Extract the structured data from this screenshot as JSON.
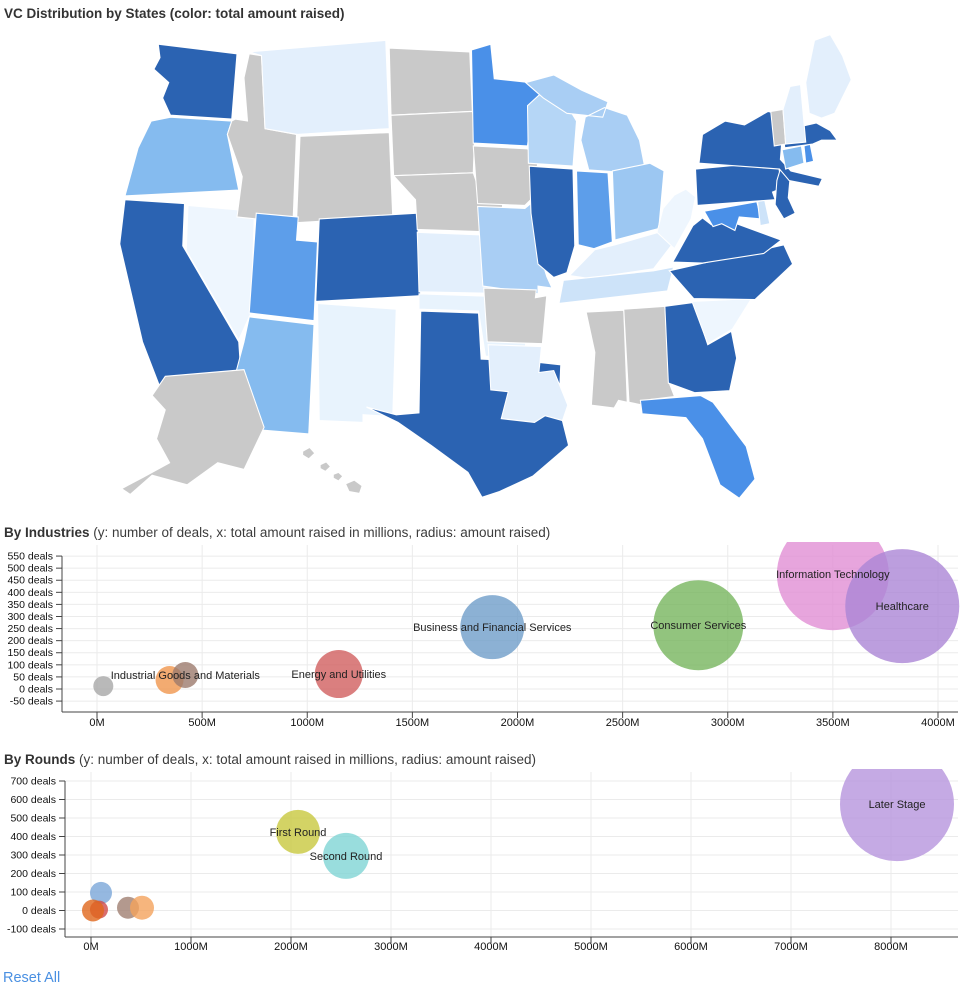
{
  "map": {
    "title": "VC Distribution by States (color: total amount raised)",
    "color_scale": {
      "high": "#2b63b2",
      "bright": "#4a90e8",
      "medium": "#5d9eea",
      "light_medium": "#85bbef",
      "light": "#a9cef4",
      "pale": "#cde3f9",
      "very_pale": "#e3effc",
      "palest": "#eef6fe",
      "no_data": "#c9c9c9"
    },
    "states": [
      {
        "id": "WA",
        "color": "#2b63b2"
      },
      {
        "id": "OR",
        "color": "#85bbef"
      },
      {
        "id": "CA",
        "color": "#2b63b2"
      },
      {
        "id": "NV",
        "color": "#eef6fe"
      },
      {
        "id": "ID",
        "color": "#c9c9c9"
      },
      {
        "id": "MT",
        "color": "#e3effc"
      },
      {
        "id": "WY",
        "color": "#c9c9c9"
      },
      {
        "id": "UT",
        "color": "#5d9eea"
      },
      {
        "id": "AZ",
        "color": "#85bbef"
      },
      {
        "id": "CO",
        "color": "#2b63b2"
      },
      {
        "id": "NM",
        "color": "#e8f3fd"
      },
      {
        "id": "ND",
        "color": "#c9c9c9"
      },
      {
        "id": "SD",
        "color": "#c9c9c9"
      },
      {
        "id": "NE",
        "color": "#c9c9c9"
      },
      {
        "id": "KS",
        "color": "#e3effc"
      },
      {
        "id": "OK",
        "color": "#e8f3fd"
      },
      {
        "id": "TX",
        "color": "#2b63b2"
      },
      {
        "id": "MN",
        "color": "#4a90e8"
      },
      {
        "id": "IA",
        "color": "#c9c9c9"
      },
      {
        "id": "MO",
        "color": "#a9cef4"
      },
      {
        "id": "AR",
        "color": "#c9c9c9"
      },
      {
        "id": "LA",
        "color": "#e3effc"
      },
      {
        "id": "WI",
        "color": "#b5d6f6"
      },
      {
        "id": "IL",
        "color": "#2b63b2"
      },
      {
        "id": "MI",
        "color": "#a9cef4"
      },
      {
        "id": "IN",
        "color": "#5d9eea"
      },
      {
        "id": "OH",
        "color": "#9cc7f2"
      },
      {
        "id": "KY",
        "color": "#e3effc"
      },
      {
        "id": "TN",
        "color": "#cde3f9"
      },
      {
        "id": "MS",
        "color": "#c9c9c9"
      },
      {
        "id": "AL",
        "color": "#c9c9c9"
      },
      {
        "id": "GA",
        "color": "#2b63b2"
      },
      {
        "id": "FL",
        "color": "#4a90e8"
      },
      {
        "id": "SC",
        "color": "#eef6fe"
      },
      {
        "id": "NC",
        "color": "#2b63b2"
      },
      {
        "id": "VA",
        "color": "#2b63b2"
      },
      {
        "id": "WV",
        "color": "#eef6fe"
      },
      {
        "id": "MD",
        "color": "#4a90e8"
      },
      {
        "id": "DE",
        "color": "#cde3f9"
      },
      {
        "id": "PA",
        "color": "#2b63b2"
      },
      {
        "id": "NJ",
        "color": "#2b63b2"
      },
      {
        "id": "NY",
        "color": "#2b63b2"
      },
      {
        "id": "CT",
        "color": "#85bbef"
      },
      {
        "id": "RI",
        "color": "#4a90e8"
      },
      {
        "id": "MA",
        "color": "#2b63b2"
      },
      {
        "id": "VT",
        "color": "#c9c9c9"
      },
      {
        "id": "NH",
        "color": "#e3effc"
      },
      {
        "id": "ME",
        "color": "#e3effc"
      },
      {
        "id": "AK",
        "color": "#c9c9c9"
      },
      {
        "id": "HI",
        "color": "#c9c9c9"
      }
    ]
  },
  "industries": {
    "title_bold": "By Industries",
    "title_note": " (y: number of deals, x: total amount raised in millions, radius: amount raised)"
  },
  "rounds": {
    "title_bold": "By Rounds",
    "title_note": " (y: number of deals, x: total amount raised in millions, radius: amount raised)"
  },
  "reset_label": "Reset All",
  "chart_data": [
    {
      "type": "bubble",
      "name": "industries",
      "title": "By Industries",
      "subtitle": "y: number of deals, x: total amount raised in millions, radius: amount raised",
      "ylabel": "number of deals",
      "xlabel": "total amount raised (millions)",
      "x_tick_labels": [
        "0M",
        "500M",
        "1000M",
        "1500M",
        "2000M",
        "2500M",
        "3000M",
        "3500M",
        "4000M"
      ],
      "y_tick_labels": [
        "550 deals",
        "500 deals",
        "450 deals",
        "400 deals",
        "350 deals",
        "300 deals",
        "250 deals",
        "200 deals",
        "150 deals",
        "100 deals",
        "50 deals",
        "0 deals",
        "-50 deals"
      ],
      "x_range": [
        0,
        4100
      ],
      "y_range": [
        -95,
        600
      ],
      "grid": true,
      "points": [
        {
          "label": "",
          "x": 30,
          "y": 12,
          "r": 10,
          "color": "#a8a8a8"
        },
        {
          "label": "",
          "x": 345,
          "y": 37,
          "r": 14,
          "color": "#f0964e"
        },
        {
          "label": "Industrial Goods and Materials",
          "x": 420,
          "y": 58,
          "r": 13,
          "color": "#9c7a6d"
        },
        {
          "label": "Energy and Utilities",
          "x": 1150,
          "y": 62,
          "r": 24,
          "color": "#d15f5f"
        },
        {
          "label": "Business and Financial Services",
          "x": 1880,
          "y": 256,
          "r": 32,
          "color": "#6f9ec9"
        },
        {
          "label": "Consumer Services",
          "x": 2860,
          "y": 264,
          "r": 45,
          "color": "#77b55e"
        },
        {
          "label": "Information Technology",
          "x": 3500,
          "y": 475,
          "r": 56,
          "color": "#e18fd4"
        },
        {
          "label": "Healthcare",
          "x": 3830,
          "y": 343,
          "r": 57,
          "color": "#ab86d6"
        }
      ]
    },
    {
      "type": "bubble",
      "name": "rounds",
      "title": "By Rounds",
      "subtitle": "y: number of deals, x: total amount raised in millions, radius: amount raised",
      "ylabel": "number of deals",
      "xlabel": "total amount raised (millions)",
      "x_tick_labels": [
        "0M",
        "1000M",
        "2000M",
        "3000M",
        "4000M",
        "5000M",
        "6000M",
        "7000M",
        "8000M"
      ],
      "y_tick_labels": [
        "700 deals",
        "600 deals",
        "500 deals",
        "400 deals",
        "300 deals",
        "200 deals",
        "100 deals",
        "0 deals",
        "-100 deals"
      ],
      "x_range": [
        0,
        8700
      ],
      "y_range": [
        -145,
        765
      ],
      "grid": true,
      "points": [
        {
          "label": "",
          "x": 100,
          "y": 95,
          "r": 11,
          "color": "#7aa6d8"
        },
        {
          "label": "",
          "x": 80,
          "y": 5,
          "r": 9,
          "color": "#cf4a4a"
        },
        {
          "label": "",
          "x": 20,
          "y": 0,
          "r": 11,
          "color": "#e0661c"
        },
        {
          "label": "",
          "x": 370,
          "y": 15,
          "r": 11,
          "color": "#a07f72"
        },
        {
          "label": "",
          "x": 510,
          "y": 15,
          "r": 12,
          "color": "#f4a35c"
        },
        {
          "label": "First Round",
          "x": 2070,
          "y": 425,
          "r": 22,
          "color": "#c8c83e"
        },
        {
          "label": "Second Round",
          "x": 2550,
          "y": 295,
          "r": 23,
          "color": "#7fd5d5"
        },
        {
          "label": "Later Stage",
          "x": 8060,
          "y": 575,
          "r": 57,
          "color": "#b795dd"
        }
      ]
    }
  ]
}
